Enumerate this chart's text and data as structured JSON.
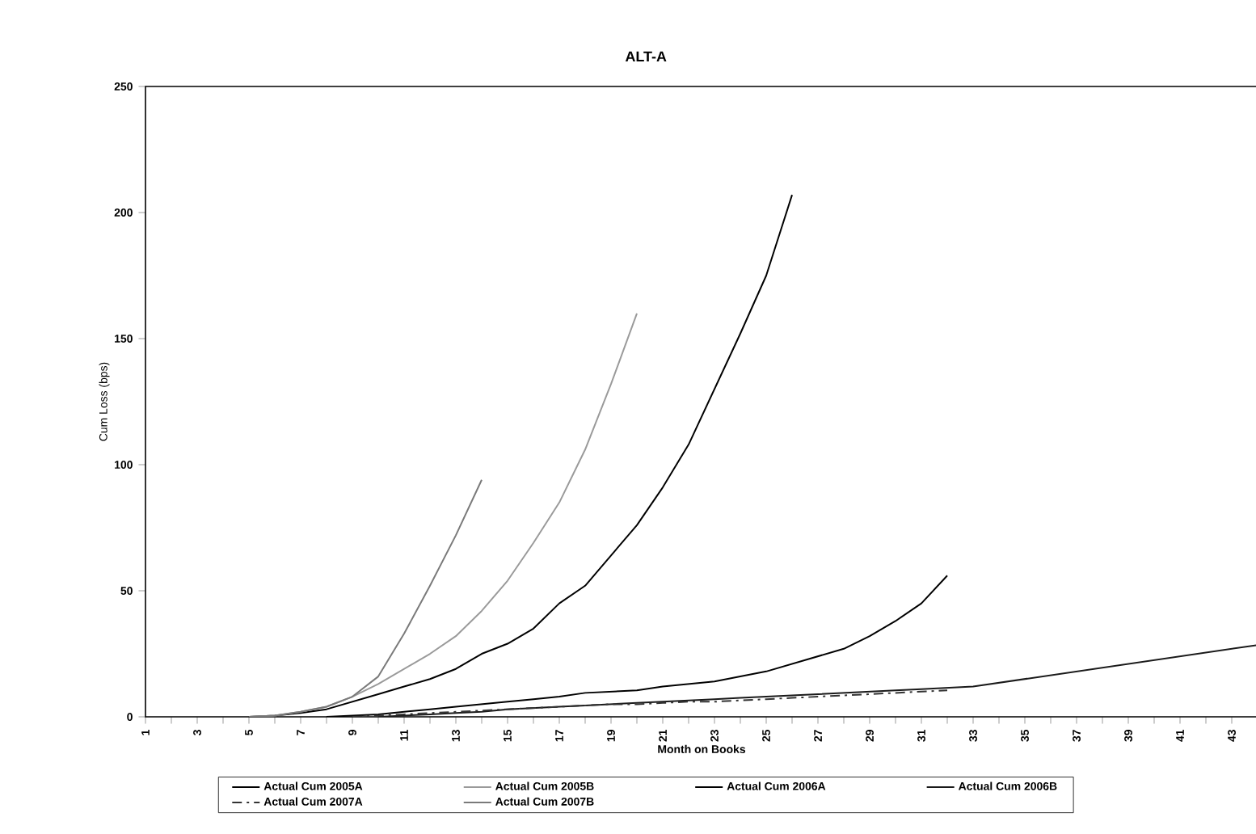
{
  "chart_data": {
    "type": "line",
    "title": "ALT-A",
    "xlabel": "Month on Books",
    "ylabel": "Cum Loss (bps)",
    "categories": [
      "1",
      null,
      "3",
      null,
      "5",
      null,
      "7",
      null,
      "9",
      null,
      "11",
      null,
      "13",
      null,
      "15",
      null,
      "17",
      null,
      "19",
      null,
      "21",
      null,
      "23",
      null,
      "25",
      null,
      "27",
      null,
      "29",
      null,
      "31",
      null,
      "33",
      null,
      "35",
      null,
      "37",
      null,
      "39",
      null,
      "41",
      null,
      "43",
      null
    ],
    "ylim": [
      0,
      250
    ],
    "yticks": [
      0,
      50,
      100,
      150,
      200,
      250
    ],
    "grid": false,
    "legend": "bottom",
    "marker": "none",
    "line_style": "solid",
    "series": [
      {
        "name": "Actual Cum 2005A",
        "color": "#000000",
        "values": [
          null,
          null,
          null,
          null,
          0,
          0.5,
          1.5,
          3,
          6,
          9,
          12,
          15,
          19,
          25,
          29,
          35,
          45,
          52,
          64,
          76,
          91,
          108,
          130,
          152,
          175,
          207,
          null,
          null,
          null,
          null,
          null,
          null,
          null,
          null,
          null,
          null,
          null,
          null,
          null,
          null,
          null,
          null,
          null,
          null
        ]
      },
      {
        "name": "Actual Cum 2005B",
        "color": "#9a9a9a",
        "values": [
          null,
          null,
          null,
          null,
          0,
          0.5,
          2,
          4,
          8,
          13,
          19,
          25,
          32,
          42,
          54,
          69,
          85,
          106,
          132,
          160,
          null,
          null,
          null,
          null,
          null,
          null,
          null,
          null,
          null,
          null,
          null,
          null,
          null,
          null,
          null,
          null,
          null,
          null,
          null,
          null,
          null,
          null,
          null,
          null
        ]
      },
      {
        "name": "Actual Cum 2006A",
        "color": "#000000",
        "values": [
          null,
          null,
          null,
          null,
          null,
          null,
          null,
          0,
          0.5,
          1,
          2,
          3,
          4,
          5,
          6,
          7,
          8,
          9.5,
          10,
          10.5,
          12,
          13,
          14,
          16,
          18,
          21,
          24,
          27,
          32,
          38,
          45,
          56,
          null,
          null,
          null,
          null,
          null,
          null,
          null,
          null,
          null,
          null,
          null,
          null
        ]
      },
      {
        "name": "Actual Cum 2006B",
        "color": "#1a1a1a",
        "values": [
          null,
          null,
          null,
          null,
          null,
          null,
          null,
          null,
          null,
          0,
          0.5,
          1,
          1.5,
          2,
          3,
          3.5,
          4,
          4.5,
          5,
          5.5,
          6,
          6.5,
          7,
          7.5,
          8,
          8.5,
          9,
          9.5,
          10,
          10.5,
          11,
          11.5,
          12,
          13.5,
          15,
          16.5,
          18,
          19.5,
          21,
          22.5,
          24,
          25.5,
          27,
          28.5
        ]
      },
      {
        "name": "Actual Cum 2007A",
        "color": "#333333",
        "line_style": "dashed",
        "values": [
          null,
          null,
          null,
          null,
          null,
          null,
          null,
          null,
          0,
          0.5,
          1,
          1.5,
          2,
          2.5,
          3,
          3.5,
          4,
          4.5,
          5,
          5,
          5.5,
          6,
          6,
          6.5,
          7,
          7.5,
          8,
          8.5,
          9,
          9.5,
          10,
          10.5,
          null,
          null,
          null,
          null,
          null,
          null,
          null,
          null,
          null,
          null,
          null,
          null
        ]
      },
      {
        "name": "Actual Cum 2007B",
        "color": "#7a7a7a",
        "values": [
          null,
          null,
          null,
          null,
          0,
          0.5,
          2,
          4,
          8,
          16,
          33,
          52,
          72,
          94,
          null,
          null,
          null,
          null,
          null,
          null,
          null,
          null,
          null,
          null,
          null,
          null,
          null,
          null,
          null,
          null,
          null,
          null,
          null,
          null,
          null,
          null,
          null,
          null,
          null,
          null,
          null,
          null,
          null,
          null
        ]
      }
    ]
  }
}
